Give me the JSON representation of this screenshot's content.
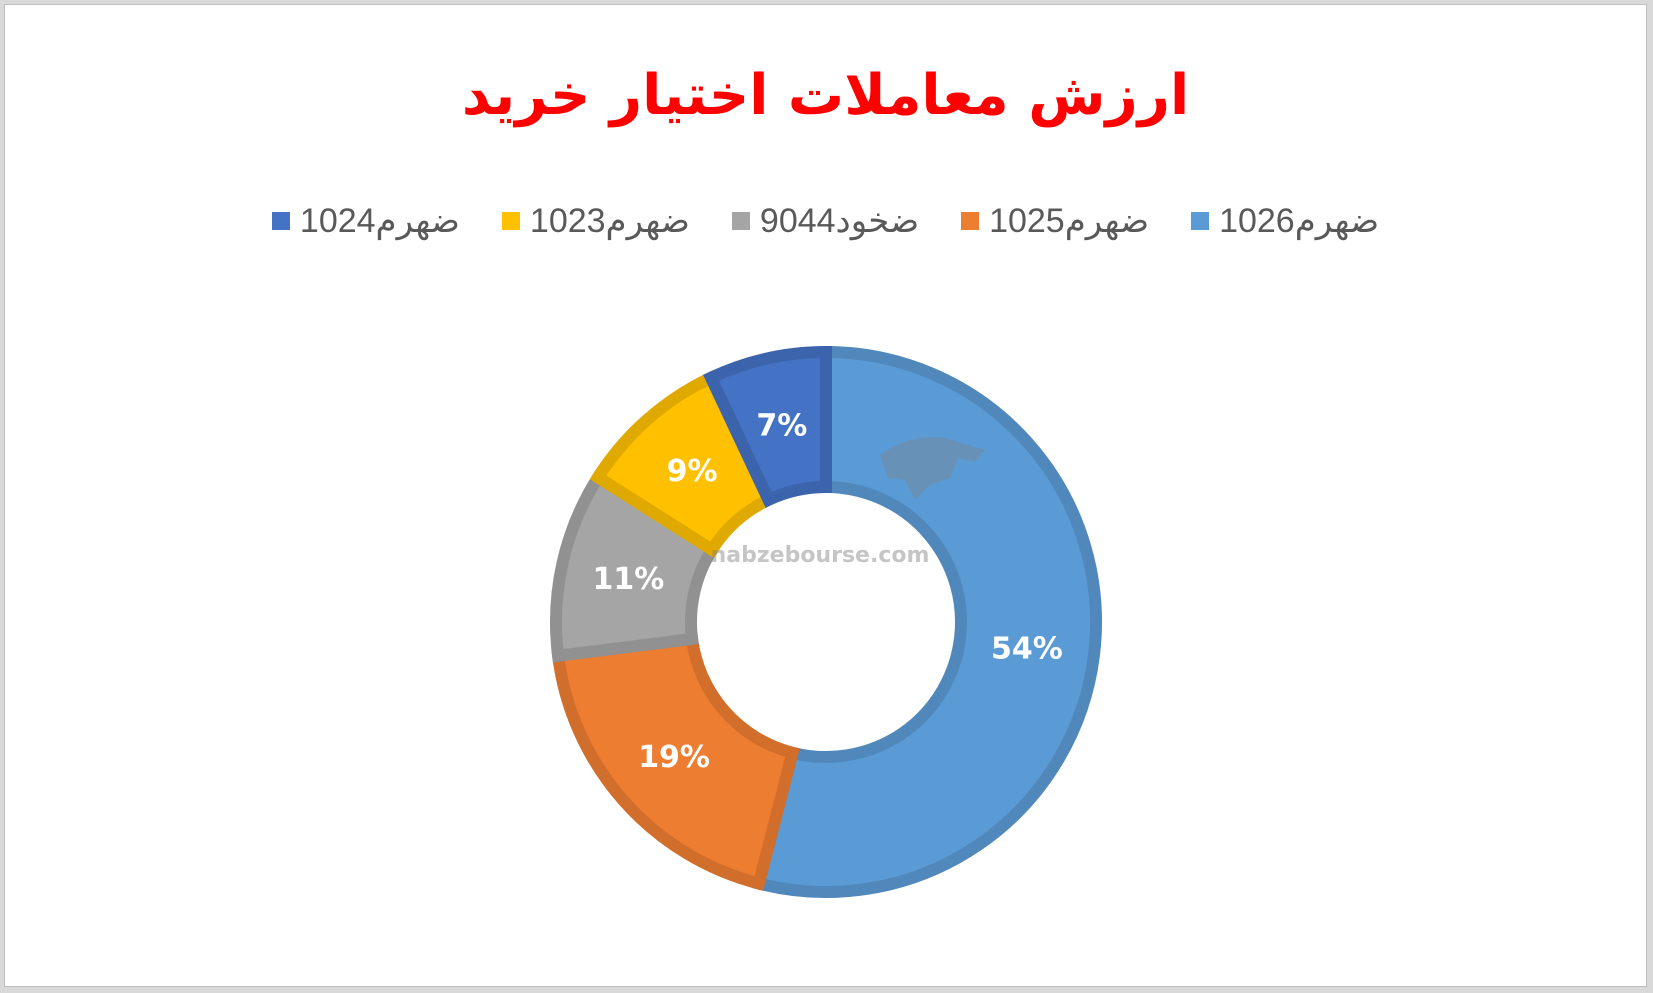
{
  "chart_data": {
    "type": "pie",
    "title": "ارزش معاملات اختیار خرید",
    "legend_position": "top",
    "series": [
      {
        "name": "ضهرم1026",
        "value": 54,
        "label": "54%",
        "color": "#5b9bd5"
      },
      {
        "name": "ضهرم1025",
        "value": 19,
        "label": "19%",
        "color": "#ed7d31"
      },
      {
        "name": "ضخود9044",
        "value": 11,
        "label": "11%",
        "color": "#a5a5a5"
      },
      {
        "name": "ضهرم1023",
        "value": 9,
        "label": "9%",
        "color": "#ffc000"
      },
      {
        "name": "ضهرم1024",
        "value": 7,
        "label": "7%",
        "color": "#4472c4"
      }
    ]
  },
  "colors": {
    "title": "#ff0000",
    "legend_text": "#595959"
  },
  "watermark": {
    "domain": "nabzebourse.com",
    "logo_icon": "bull-logo-icon"
  }
}
